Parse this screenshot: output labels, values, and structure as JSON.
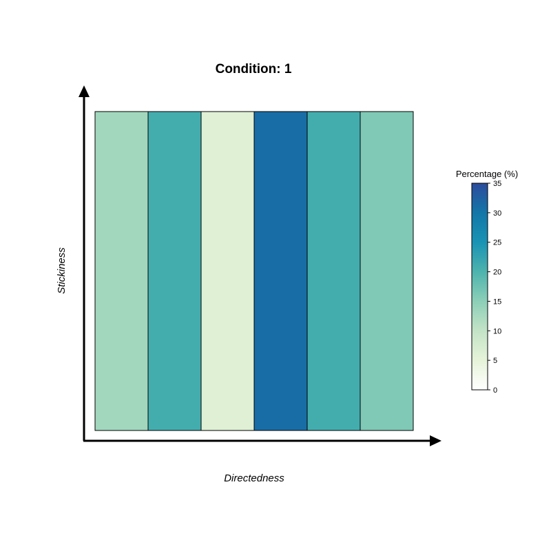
{
  "chart_data": {
    "type": "heatmap",
    "title": "Condition: 1",
    "xlabel": "Directedness",
    "ylabel": "Stickiness",
    "columns": 6,
    "rows": 1,
    "values": [
      13,
      21,
      6,
      31,
      21,
      16
    ],
    "colorbar": {
      "title": "Percentage (%)",
      "range": [
        0,
        35
      ],
      "ticks": [
        0,
        5,
        10,
        15,
        20,
        25,
        30,
        35
      ],
      "colors": [
        "#ffffff",
        "#e6f3d9",
        "#c3e3c6",
        "#8ccfb8",
        "#4db3ad",
        "#1a93b4",
        "#1376a8",
        "#2d4b9c"
      ]
    },
    "grid": false
  }
}
